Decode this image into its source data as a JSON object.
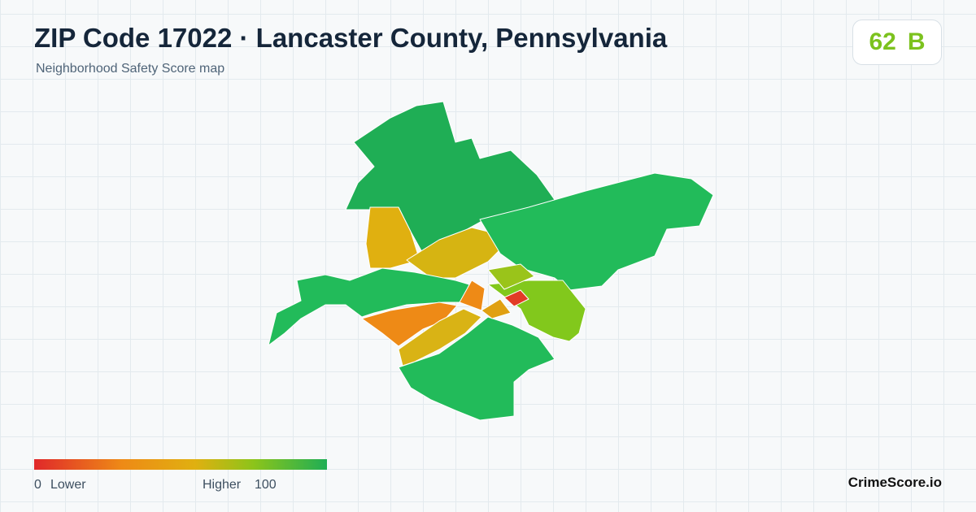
{
  "header": {
    "title": "ZIP Code 17022 · Lancaster County, Pennsylvania",
    "subtitle": "Neighborhood Safety Score map"
  },
  "score": {
    "value": 62,
    "grade": "B"
  },
  "legend": {
    "min": 0,
    "low_label": "Lower",
    "high_label": "Higher",
    "max": 100
  },
  "brand": "CrimeScore.io"
}
